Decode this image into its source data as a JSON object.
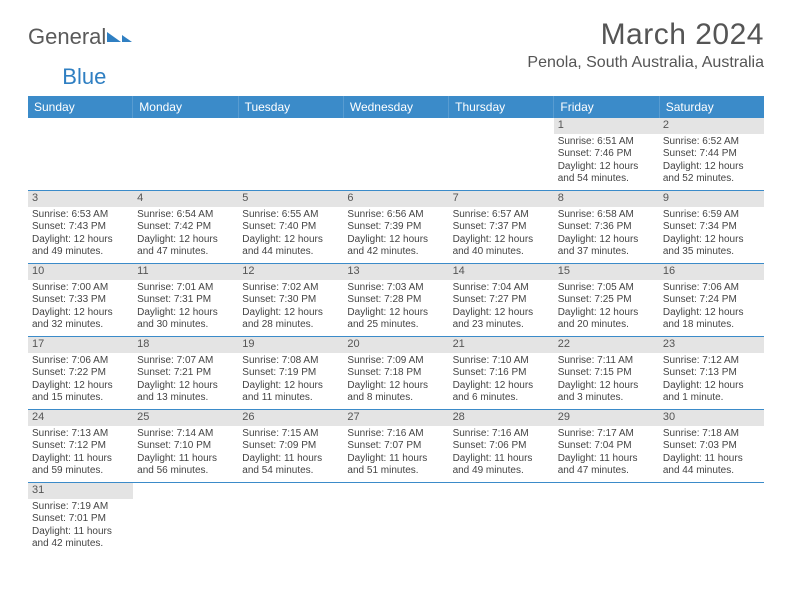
{
  "logo": {
    "text1": "General",
    "text2": "Blue"
  },
  "title": "March 2024",
  "location": "Penola, South Australia, Australia",
  "colors": {
    "header_bg": "#3b8bc9",
    "header_text": "#ffffff",
    "daynum_bg": "#e4e4e4",
    "week_border": "#3b8bc9",
    "text": "#444444",
    "logo_gray": "#5a5a5a",
    "logo_blue": "#2f7fc2"
  },
  "fonts": {
    "title_size_pt": 22,
    "location_size_pt": 12,
    "header_size_pt": 9,
    "body_size_pt": 7.5
  },
  "day_names": [
    "Sunday",
    "Monday",
    "Tuesday",
    "Wednesday",
    "Thursday",
    "Friday",
    "Saturday"
  ],
  "weeks": [
    [
      null,
      null,
      null,
      null,
      null,
      {
        "n": "1",
        "sr": "Sunrise: 6:51 AM",
        "ss": "Sunset: 7:46 PM",
        "dl": "Daylight: 12 hours and 54 minutes."
      },
      {
        "n": "2",
        "sr": "Sunrise: 6:52 AM",
        "ss": "Sunset: 7:44 PM",
        "dl": "Daylight: 12 hours and 52 minutes."
      }
    ],
    [
      {
        "n": "3",
        "sr": "Sunrise: 6:53 AM",
        "ss": "Sunset: 7:43 PM",
        "dl": "Daylight: 12 hours and 49 minutes."
      },
      {
        "n": "4",
        "sr": "Sunrise: 6:54 AM",
        "ss": "Sunset: 7:42 PM",
        "dl": "Daylight: 12 hours and 47 minutes."
      },
      {
        "n": "5",
        "sr": "Sunrise: 6:55 AM",
        "ss": "Sunset: 7:40 PM",
        "dl": "Daylight: 12 hours and 44 minutes."
      },
      {
        "n": "6",
        "sr": "Sunrise: 6:56 AM",
        "ss": "Sunset: 7:39 PM",
        "dl": "Daylight: 12 hours and 42 minutes."
      },
      {
        "n": "7",
        "sr": "Sunrise: 6:57 AM",
        "ss": "Sunset: 7:37 PM",
        "dl": "Daylight: 12 hours and 40 minutes."
      },
      {
        "n": "8",
        "sr": "Sunrise: 6:58 AM",
        "ss": "Sunset: 7:36 PM",
        "dl": "Daylight: 12 hours and 37 minutes."
      },
      {
        "n": "9",
        "sr": "Sunrise: 6:59 AM",
        "ss": "Sunset: 7:34 PM",
        "dl": "Daylight: 12 hours and 35 minutes."
      }
    ],
    [
      {
        "n": "10",
        "sr": "Sunrise: 7:00 AM",
        "ss": "Sunset: 7:33 PM",
        "dl": "Daylight: 12 hours and 32 minutes."
      },
      {
        "n": "11",
        "sr": "Sunrise: 7:01 AM",
        "ss": "Sunset: 7:31 PM",
        "dl": "Daylight: 12 hours and 30 minutes."
      },
      {
        "n": "12",
        "sr": "Sunrise: 7:02 AM",
        "ss": "Sunset: 7:30 PM",
        "dl": "Daylight: 12 hours and 28 minutes."
      },
      {
        "n": "13",
        "sr": "Sunrise: 7:03 AM",
        "ss": "Sunset: 7:28 PM",
        "dl": "Daylight: 12 hours and 25 minutes."
      },
      {
        "n": "14",
        "sr": "Sunrise: 7:04 AM",
        "ss": "Sunset: 7:27 PM",
        "dl": "Daylight: 12 hours and 23 minutes."
      },
      {
        "n": "15",
        "sr": "Sunrise: 7:05 AM",
        "ss": "Sunset: 7:25 PM",
        "dl": "Daylight: 12 hours and 20 minutes."
      },
      {
        "n": "16",
        "sr": "Sunrise: 7:06 AM",
        "ss": "Sunset: 7:24 PM",
        "dl": "Daylight: 12 hours and 18 minutes."
      }
    ],
    [
      {
        "n": "17",
        "sr": "Sunrise: 7:06 AM",
        "ss": "Sunset: 7:22 PM",
        "dl": "Daylight: 12 hours and 15 minutes."
      },
      {
        "n": "18",
        "sr": "Sunrise: 7:07 AM",
        "ss": "Sunset: 7:21 PM",
        "dl": "Daylight: 12 hours and 13 minutes."
      },
      {
        "n": "19",
        "sr": "Sunrise: 7:08 AM",
        "ss": "Sunset: 7:19 PM",
        "dl": "Daylight: 12 hours and 11 minutes."
      },
      {
        "n": "20",
        "sr": "Sunrise: 7:09 AM",
        "ss": "Sunset: 7:18 PM",
        "dl": "Daylight: 12 hours and 8 minutes."
      },
      {
        "n": "21",
        "sr": "Sunrise: 7:10 AM",
        "ss": "Sunset: 7:16 PM",
        "dl": "Daylight: 12 hours and 6 minutes."
      },
      {
        "n": "22",
        "sr": "Sunrise: 7:11 AM",
        "ss": "Sunset: 7:15 PM",
        "dl": "Daylight: 12 hours and 3 minutes."
      },
      {
        "n": "23",
        "sr": "Sunrise: 7:12 AM",
        "ss": "Sunset: 7:13 PM",
        "dl": "Daylight: 12 hours and 1 minute."
      }
    ],
    [
      {
        "n": "24",
        "sr": "Sunrise: 7:13 AM",
        "ss": "Sunset: 7:12 PM",
        "dl": "Daylight: 11 hours and 59 minutes."
      },
      {
        "n": "25",
        "sr": "Sunrise: 7:14 AM",
        "ss": "Sunset: 7:10 PM",
        "dl": "Daylight: 11 hours and 56 minutes."
      },
      {
        "n": "26",
        "sr": "Sunrise: 7:15 AM",
        "ss": "Sunset: 7:09 PM",
        "dl": "Daylight: 11 hours and 54 minutes."
      },
      {
        "n": "27",
        "sr": "Sunrise: 7:16 AM",
        "ss": "Sunset: 7:07 PM",
        "dl": "Daylight: 11 hours and 51 minutes."
      },
      {
        "n": "28",
        "sr": "Sunrise: 7:16 AM",
        "ss": "Sunset: 7:06 PM",
        "dl": "Daylight: 11 hours and 49 minutes."
      },
      {
        "n": "29",
        "sr": "Sunrise: 7:17 AM",
        "ss": "Sunset: 7:04 PM",
        "dl": "Daylight: 11 hours and 47 minutes."
      },
      {
        "n": "30",
        "sr": "Sunrise: 7:18 AM",
        "ss": "Sunset: 7:03 PM",
        "dl": "Daylight: 11 hours and 44 minutes."
      }
    ],
    [
      {
        "n": "31",
        "sr": "Sunrise: 7:19 AM",
        "ss": "Sunset: 7:01 PM",
        "dl": "Daylight: 11 hours and 42 minutes."
      },
      null,
      null,
      null,
      null,
      null,
      null
    ]
  ]
}
